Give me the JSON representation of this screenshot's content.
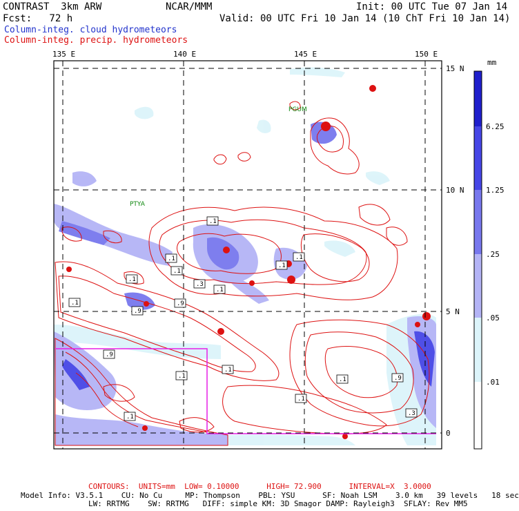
{
  "header": {
    "model": "CONTRAST  3km ARW",
    "org": "NCAR/MMM",
    "init": "Init: 00 UTC Tue 07 Jan 14",
    "fcst": "Fcst:   72 h",
    "valid": "Valid: 00 UTC Fri 10 Jan 14 (10 ChT Fri 10 Jan 14)",
    "field1": "Column-integ. cloud hydrometeors",
    "field2": "Column-integ. precip. hydrometeors"
  },
  "map": {
    "lon_labels": [
      "135 E",
      "140 E",
      "145 E",
      "150 E"
    ],
    "lat_labels": [
      "15 N",
      "10 N",
      "5 N",
      "0"
    ],
    "stations": [
      "PGUM",
      "PTYA"
    ],
    "contour_labels": [
      ".1",
      ".1",
      ".1",
      ".1",
      ".1",
      ".1",
      ".1",
      ".1",
      ".9",
      ".9",
      ".9",
      ".9",
      ".1",
      ".1",
      ".3",
      ".1",
      ".3",
      ".1",
      ".1"
    ]
  },
  "colorbar": {
    "unit": "mm",
    "labels": [
      "6.25",
      "1.25",
      ".25",
      ".05",
      ".01"
    ],
    "colors": [
      "#1f1fcc",
      "#4646e6",
      "#7878ee",
      "#b4b4f6",
      "#dcf4fa",
      "#ffffff"
    ]
  },
  "footer": {
    "contours": "CONTOURS:  UNITS=mm  LOW= 0.10000      HIGH= 72.900      INTERVAL=X  3.0000",
    "model_info_1": "Model Info: V3.5.1    CU: No Cu     MP: Thompson    PBL: YSU      SF: Noah LSM    3.0 km   39 levels   18 sec",
    "model_info_2": "LW: RRTMG    SW: RRTMG   DIFF: simple KM: 3D Smagor DAMP: Rayleigh3  SFLAY: Rev MM5"
  }
}
